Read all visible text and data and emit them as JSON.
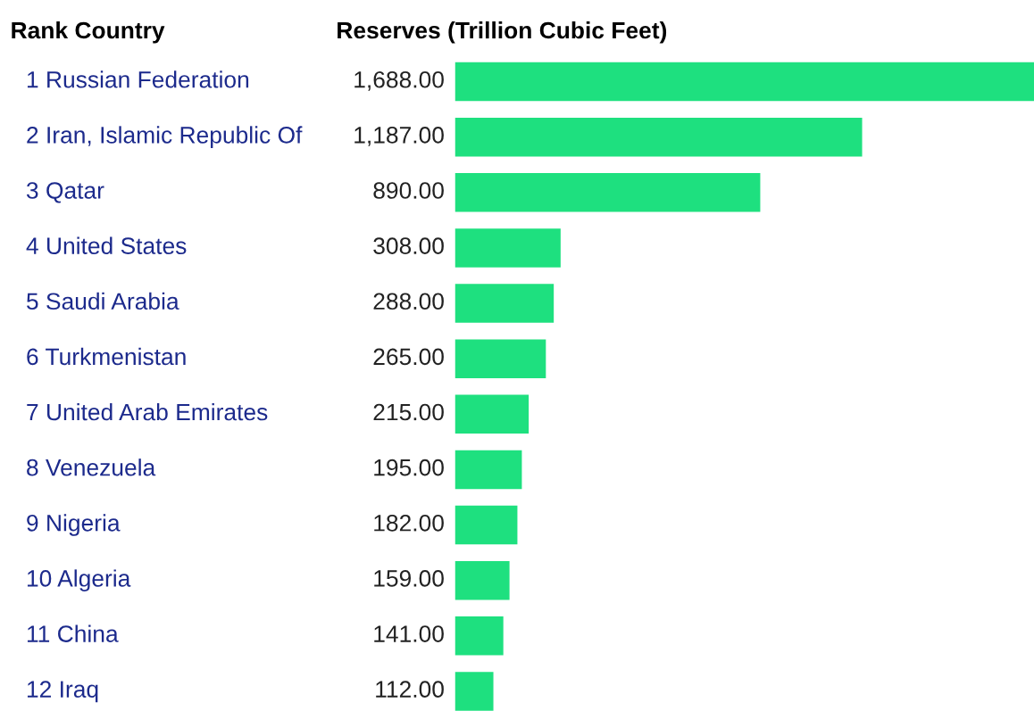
{
  "chart_data": {
    "type": "bar",
    "orientation": "horizontal",
    "ylabel": "Rank Country",
    "xlabel": "Reserves (Trillion Cubic Feet)",
    "categories": [
      "1 Russian Federation",
      "2 Iran, Islamic Republic Of",
      "3 Qatar",
      "4 United States",
      "5 Saudi Arabia",
      "6 Turkmenistan",
      "7 United Arab Emirates",
      "8 Venezuela",
      "9 Nigeria",
      "10 Algeria",
      "11 China",
      "12 Iraq"
    ],
    "values": [
      1688,
      1187,
      890,
      308,
      288,
      265,
      215,
      195,
      182,
      159,
      141,
      112
    ],
    "value_labels": [
      "1,688.00",
      "1,187.00",
      "890.00",
      "308.00",
      "288.00",
      "265.00",
      "215.00",
      "195.00",
      "182.00",
      "159.00",
      "141.00",
      "112.00"
    ],
    "color": "#1ee07f",
    "xlim": [
      0,
      1688
    ]
  }
}
